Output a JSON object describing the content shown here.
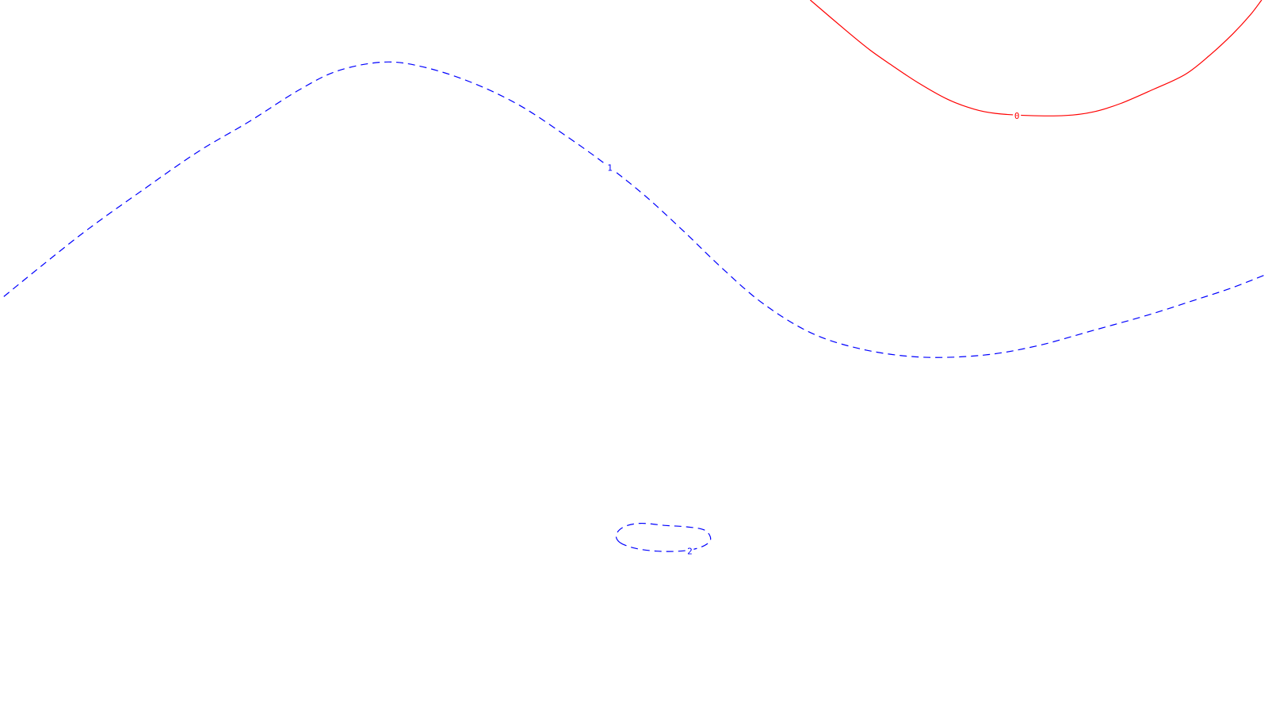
{
  "chart_data": {
    "type": "contour",
    "title": "",
    "xlabel": "",
    "ylabel": "",
    "grid": false,
    "legend": "none",
    "contours": [
      {
        "level": "0",
        "color": "#ff0000",
        "style": "solid",
        "points": [
          [
            63.9,
            100
          ],
          [
            66.8,
            95.6
          ],
          [
            68.6,
            93
          ],
          [
            70.2,
            91
          ],
          [
            72.4,
            88.4
          ],
          [
            74.7,
            86.1
          ],
          [
            76.8,
            84.7
          ],
          [
            78.5,
            84.1
          ],
          [
            81.1,
            83.8
          ],
          [
            84,
            83.8
          ],
          [
            86.2,
            84.3
          ],
          [
            88.4,
            85.5
          ],
          [
            91,
            87.5
          ],
          [
            93.5,
            89.6
          ],
          [
            95.5,
            92.4
          ],
          [
            97.2,
            95.2
          ],
          [
            98.6,
            97.9
          ],
          [
            99.5,
            100
          ]
        ],
        "label_at": [
          80.2,
          83.8
        ]
      },
      {
        "level": "1",
        "color": "#0000ff",
        "style": "dashed",
        "points": [
          [
            0.3,
            58.4
          ],
          [
            3.2,
            62.6
          ],
          [
            6.9,
            67.8
          ],
          [
            11.3,
            73.4
          ],
          [
            15.6,
            78.7
          ],
          [
            19.7,
            83
          ],
          [
            23.6,
            87.4
          ],
          [
            26.7,
            90.1
          ],
          [
            30.3,
            91.3
          ],
          [
            33.4,
            90.6
          ],
          [
            37.1,
            88.5
          ],
          [
            41,
            85.2
          ],
          [
            45,
            80.5
          ],
          [
            48.1,
            76.5
          ],
          [
            50.9,
            72.5
          ],
          [
            53.9,
            67.6
          ],
          [
            57,
            62.3
          ],
          [
            60.2,
            57.4
          ],
          [
            64.1,
            53.2
          ],
          [
            68.3,
            50.9
          ],
          [
            72.8,
            49.9
          ],
          [
            77.6,
            50.2
          ],
          [
            81.8,
            51.5
          ],
          [
            86.1,
            53.6
          ],
          [
            90.5,
            55.8
          ],
          [
            94.2,
            57.9
          ],
          [
            97.1,
            59.6
          ],
          [
            99.7,
            61.4
          ]
        ],
        "label_at": [
          48.1,
          76.5
        ]
      },
      {
        "level": "2",
        "color": "#0000ff",
        "style": "dashed",
        "closed": true,
        "points": [
          [
            48.9,
            23.9
          ],
          [
            50.1,
            23.1
          ],
          [
            51.8,
            22.7
          ],
          [
            53.6,
            22.7
          ],
          [
            55,
            23.1
          ],
          [
            55.9,
            23.9
          ],
          [
            56,
            24.8
          ],
          [
            55.5,
            25.7
          ],
          [
            54.2,
            26.1
          ],
          [
            52.5,
            26.3
          ],
          [
            50.5,
            26.6
          ],
          [
            49.2,
            26.1
          ],
          [
            48.6,
            25
          ]
        ],
        "label_at": [
          54.4,
          22.7
        ]
      }
    ]
  }
}
